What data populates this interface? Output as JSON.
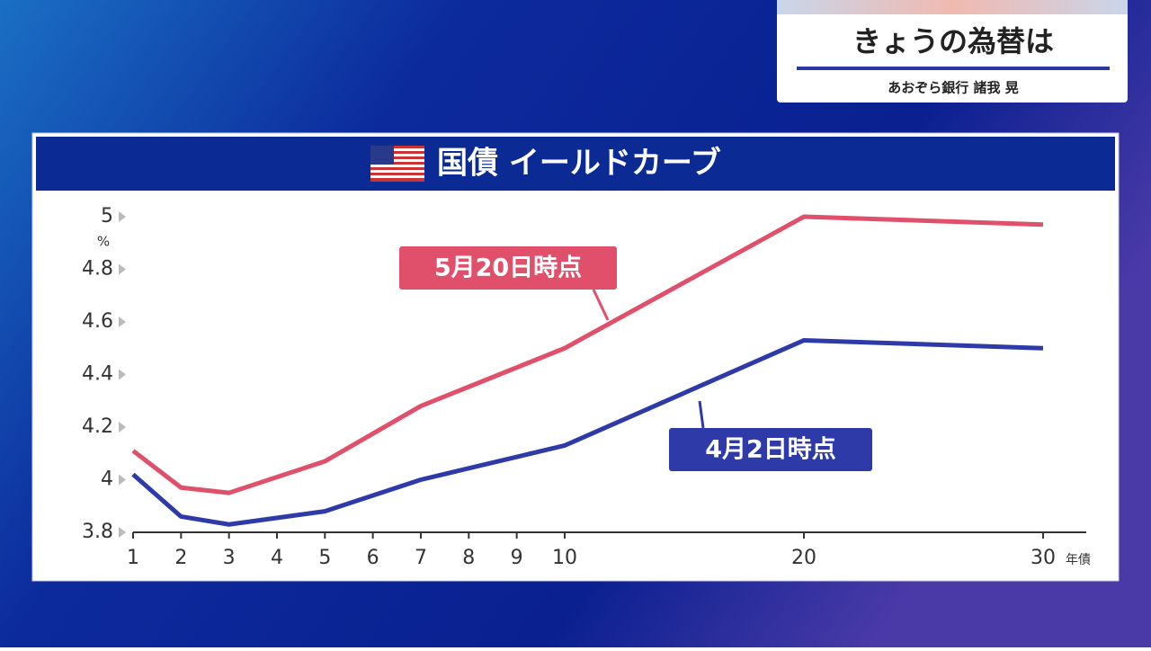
{
  "header": {
    "title": "きょうの為替は",
    "subtitle": "あおぞら銀行 諸我 晃"
  },
  "chart_data": {
    "type": "line",
    "title": "国債 イールドカーブ",
    "y_unit": "%",
    "x_unit": "年債",
    "x": [
      1,
      2,
      3,
      5,
      7,
      10,
      20,
      30
    ],
    "series": [
      {
        "name": "5月20日時点",
        "color": "#e0506a",
        "values": [
          4.11,
          3.97,
          3.95,
          4.07,
          4.28,
          4.5,
          5.0,
          4.97
        ]
      },
      {
        "name": "4月2日時点",
        "color": "#2d3aa8",
        "values": [
          4.02,
          3.86,
          3.83,
          3.88,
          4.0,
          4.13,
          4.53,
          4.5
        ]
      }
    ],
    "xticks": [
      1,
      2,
      3,
      4,
      5,
      6,
      7,
      8,
      9,
      10,
      20,
      30
    ],
    "ylim": [
      3.8,
      5
    ],
    "yticks": [
      3.8,
      4,
      4.2,
      4.4,
      4.6,
      4.8,
      5
    ]
  }
}
